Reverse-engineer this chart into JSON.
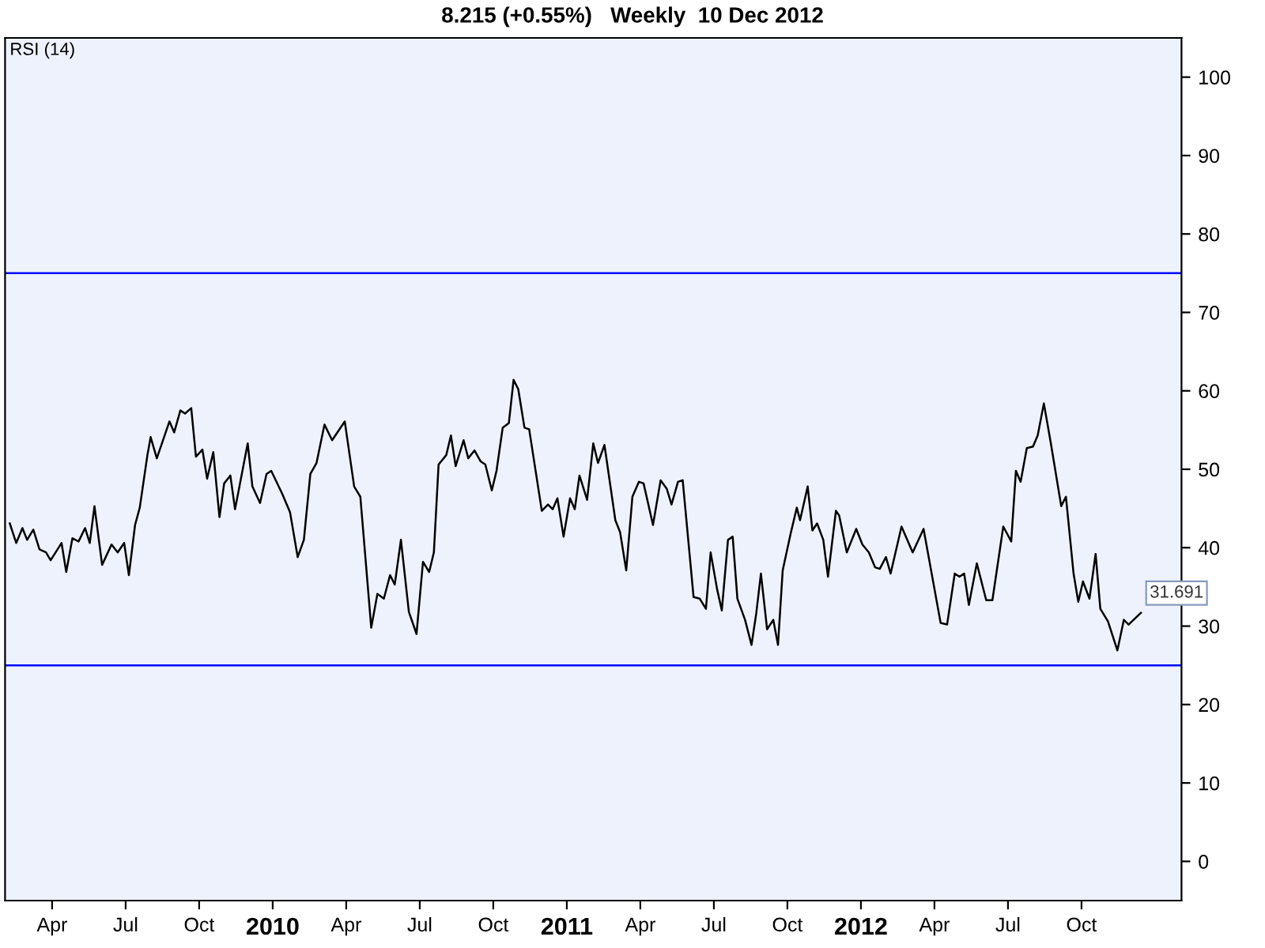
{
  "chart_data": {
    "type": "line",
    "title": "8.215 (+0.55%)   Weekly  10 Dec 2012",
    "annotations": [
      "RSI (14)",
      {
        "text": "31.691",
        "x": 2012.952,
        "y": 31.691
      }
    ],
    "x": [
      2009.106,
      2009.128,
      2009.149,
      2009.165,
      2009.186,
      2009.207,
      2009.229,
      2009.245,
      2009.282,
      2009.298,
      2009.319,
      2009.34,
      2009.362,
      2009.378,
      2009.394,
      2009.42,
      2009.452,
      2009.473,
      2009.495,
      2009.511,
      2009.532,
      2009.548,
      2009.574,
      2009.585,
      2009.606,
      2009.649,
      2009.665,
      2009.686,
      2009.702,
      2009.723,
      2009.739,
      2009.761,
      2009.777,
      2009.798,
      2009.819,
      2009.835,
      2009.856,
      2009.872,
      2009.915,
      2009.931,
      2009.957,
      2009.979,
      2009.995,
      2010.032,
      2010.059,
      2010.085,
      2010.106,
      2010.128,
      2010.149,
      2010.176,
      2010.202,
      2010.245,
      2010.277,
      2010.298,
      2010.335,
      2010.356,
      2010.378,
      2010.399,
      2010.415,
      2010.436,
      2010.463,
      2010.489,
      2010.511,
      2010.532,
      2010.548,
      2010.564,
      2010.59,
      2010.606,
      2010.622,
      2010.649,
      2010.665,
      2010.686,
      2010.707,
      2010.723,
      2010.745,
      2010.761,
      2010.782,
      2010.803,
      2010.819,
      2010.835,
      2010.856,
      2010.872,
      2010.915,
      2010.936,
      2010.952,
      2010.968,
      2010.989,
      2011.011,
      2011.027,
      2011.043,
      2011.069,
      2011.09,
      2011.106,
      2011.128,
      2011.165,
      2011.181,
      2011.202,
      2011.223,
      2011.245,
      2011.261,
      2011.293,
      2011.319,
      2011.34,
      2011.356,
      2011.378,
      2011.394,
      2011.431,
      2011.452,
      2011.473,
      2011.489,
      2011.511,
      2011.527,
      2011.548,
      2011.564,
      2011.58,
      2011.606,
      2011.628,
      2011.644,
      2011.66,
      2011.681,
      2011.702,
      2011.718,
      2011.734,
      2011.761,
      2011.782,
      2011.793,
      2011.819,
      2011.835,
      2011.851,
      2011.872,
      2011.888,
      2011.915,
      2011.926,
      2011.952,
      2011.984,
      2012.005,
      2012.027,
      2012.048,
      2012.064,
      2012.085,
      2012.101,
      2012.138,
      2012.176,
      2012.213,
      2012.271,
      2012.293,
      2012.319,
      2012.335,
      2012.351,
      2012.367,
      2012.394,
      2012.426,
      2012.447,
      2012.484,
      2012.511,
      2012.527,
      2012.543,
      2012.564,
      2012.585,
      2012.601,
      2012.622,
      2012.644,
      2012.681,
      2012.697,
      2012.723,
      2012.739,
      2012.755,
      2012.777,
      2012.798,
      2012.814,
      2012.84,
      2012.872,
      2012.894,
      2012.91,
      2012.952
    ],
    "series": [
      {
        "color": "#000000",
        "values": [
          43.1,
          40.6,
          42.5,
          41,
          42.3,
          39.8,
          39.4,
          38.4,
          40.6,
          36.9,
          41.2,
          40.8,
          42.5,
          40.6,
          45.3,
          37.8,
          40.4,
          39.4,
          40.6,
          36.5,
          42.9,
          45.1,
          51.8,
          54.1,
          51.4,
          56.1,
          54.7,
          57.5,
          57.1,
          57.8,
          51.6,
          52.5,
          48.8,
          52.2,
          43.9,
          48.2,
          49.2,
          44.9,
          53.3,
          47.8,
          45.7,
          49.4,
          49.8,
          46.9,
          44.5,
          38.8,
          41,
          49.4,
          50.8,
          55.7,
          53.7,
          56.1,
          47.8,
          46.5,
          29.8,
          34.1,
          33.5,
          36.5,
          35.3,
          41,
          31.8,
          29,
          38.2,
          36.9,
          39.4,
          50.6,
          51.8,
          54.3,
          50.4,
          53.7,
          51.4,
          52.4,
          51,
          50.6,
          47.3,
          49.8,
          55.3,
          55.9,
          61.4,
          60.2,
          55.3,
          55.1,
          44.7,
          45.5,
          44.9,
          46.3,
          41.4,
          46.3,
          44.9,
          49.2,
          46.1,
          53.3,
          50.8,
          53.1,
          43.5,
          42,
          37.1,
          46.5,
          48.4,
          48.2,
          42.9,
          48.6,
          47.5,
          45.5,
          48.4,
          48.6,
          33.7,
          33.5,
          32.2,
          39.4,
          34.7,
          32,
          41,
          41.4,
          33.5,
          30.8,
          27.6,
          31.6,
          36.7,
          29.6,
          30.8,
          27.6,
          37.1,
          41.8,
          45.1,
          43.5,
          47.8,
          42.2,
          43.1,
          41,
          36.3,
          44.7,
          44.1,
          39.4,
          42.4,
          40.4,
          39.4,
          37.5,
          37.3,
          38.8,
          36.7,
          42.7,
          39.4,
          42.4,
          30.4,
          30.2,
          36.7,
          36.3,
          36.7,
          32.7,
          38,
          33.3,
          33.3,
          42.7,
          40.8,
          49.8,
          48.4,
          52.7,
          52.9,
          54.3,
          58.4,
          53.7,
          45.3,
          46.5,
          36.7,
          33.1,
          35.7,
          33.5,
          39.2,
          32.2,
          30.6,
          26.9,
          30.8,
          30.2,
          31.691
        ]
      }
    ],
    "xlim": [
      2009.09,
      2013.09
    ],
    "xticks": [
      {
        "value": 2009.25,
        "label": "Apr"
      },
      {
        "value": 2009.5,
        "label": "Jul"
      },
      {
        "value": 2009.75,
        "label": "Oct"
      },
      2010,
      {
        "value": 2010.25,
        "label": "Apr"
      },
      {
        "value": 2010.5,
        "label": "Jul"
      },
      {
        "value": 2010.75,
        "label": "Oct"
      },
      2011,
      {
        "value": 2011.25,
        "label": "Apr"
      },
      {
        "value": 2011.5,
        "label": "Jul"
      },
      {
        "value": 2011.75,
        "label": "Oct"
      },
      2012,
      {
        "value": 2012.25,
        "label": "Apr"
      },
      {
        "value": 2012.5,
        "label": "Jul"
      },
      {
        "value": 2012.75,
        "label": "Oct"
      }
    ],
    "ylim": [
      -5,
      105
    ],
    "yticks": [
      0,
      10,
      20,
      30,
      40,
      50,
      60,
      70,
      80,
      90,
      100
    ],
    "ref_lines": [
      {
        "axis": "y",
        "value": 75,
        "color": "#0000ff"
      },
      {
        "axis": "y",
        "value": 25,
        "color": "#0000ff"
      }
    ]
  }
}
